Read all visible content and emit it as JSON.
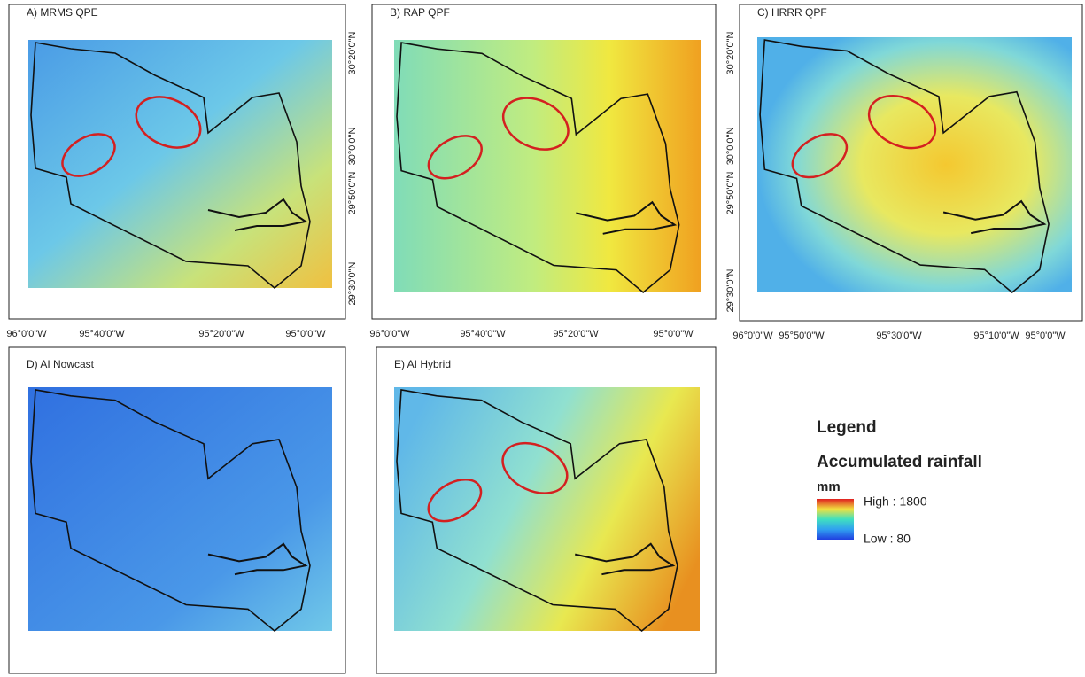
{
  "panels": [
    {
      "title": "A) MRMS QPE",
      "x_labels": [
        "96°0'0\"W",
        "95°40'0\"W",
        "95°20'0\"W",
        "95°0'0\"W"
      ],
      "y_labels": [
        "30°20'0\"N",
        "30°0'0\"N",
        "29°50'0\"N",
        "29°30'0\"N"
      ]
    },
    {
      "title": "B) RAP QPF",
      "x_labels": [
        "96°0'0\"W",
        "95°40'0\"W",
        "95°20'0\"W",
        "95°0'0\"W"
      ],
      "y_labels": [
        "30°20'0\"N",
        "30°0'0\"N",
        "29°50'0\"N",
        "29°30'0\"N"
      ]
    },
    {
      "title": "C) HRRR QPF",
      "x_labels": [
        "96°0'0\"W",
        "95°50'0\"W",
        "95°30'0\"W",
        "95°10'0\"W",
        "95°0'0\"W"
      ]
    },
    {
      "title": "D) AI Nowcast"
    },
    {
      "title": "E) AI Hybrid"
    }
  ],
  "legend": {
    "title": "Legend",
    "subtitle": "Accumulated rainfall",
    "unit": "mm",
    "high": "High : 1800",
    "low": "Low : 80"
  }
}
